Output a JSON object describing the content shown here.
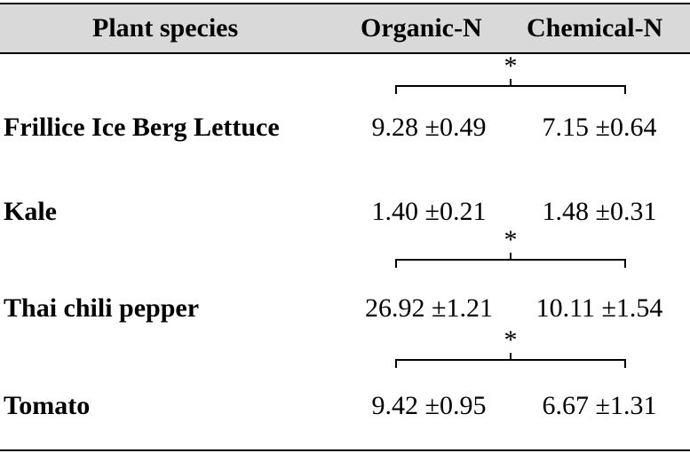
{
  "table": {
    "headers": {
      "species": "Plant species",
      "organic": "Organic-N",
      "chemical": "Chemical-N"
    },
    "rows": [
      {
        "species": "Frillice  Ice Berg Lettuce",
        "organic": "9.28 ±0.49",
        "chemical": "7.15 ±0.64",
        "significant": true
      },
      {
        "species": "Kale",
        "organic": "1.40 ±0.21",
        "chemical": "1.48 ±0.31",
        "significant": false
      },
      {
        "species": "Thai chili pepper",
        "organic": "26.92 ±1.21",
        "chemical": "10.11 ±1.54",
        "significant": true
      },
      {
        "species": "Tomato",
        "organic": "9.42 ±0.95",
        "chemical": "6.67 ±1.31",
        "significant": true
      }
    ],
    "significance_mark": "*"
  },
  "colors": {
    "header_background": "#d9d9d9",
    "rules": "#000000",
    "text": "#000000"
  }
}
